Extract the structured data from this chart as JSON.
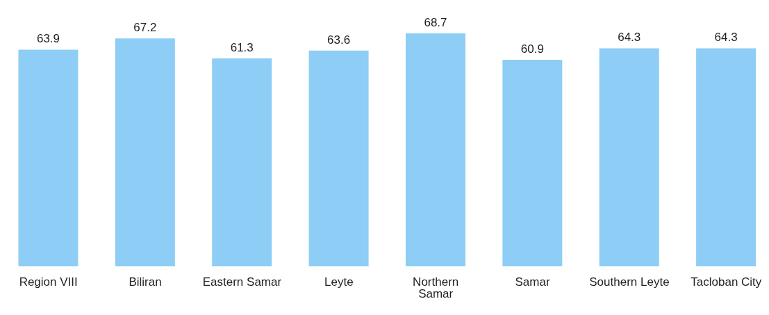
{
  "chart_data": {
    "type": "bar",
    "categories": [
      "Region VIII",
      "Biliran",
      "Eastern Samar",
      "Leyte",
      "Northern Samar",
      "Samar",
      "Southern Leyte",
      "Tacloban City"
    ],
    "values": [
      63.9,
      67.2,
      61.3,
      63.6,
      68.7,
      60.9,
      64.3,
      64.3
    ],
    "color": "#8ecdf5",
    "data_labels": true,
    "grid": false,
    "legend": false
  }
}
